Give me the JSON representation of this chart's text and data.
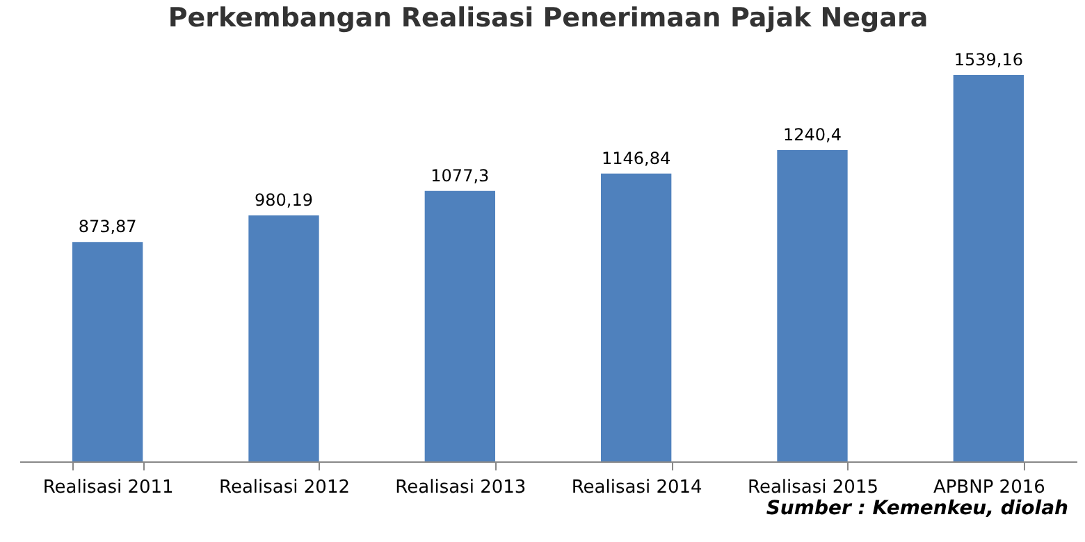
{
  "chart_data": {
    "type": "bar",
    "title": "Perkembangan Realisasi Penerimaan Pajak Negara",
    "categories": [
      "Realisasi 2011",
      "Realisasi 2012",
      "Realisasi 2013",
      "Realisasi 2014",
      "Realisasi 2015",
      "APBNP 2016"
    ],
    "values": [
      873.87,
      980.19,
      1077.3,
      1146.84,
      1240.4,
      1539.16
    ],
    "value_labels": [
      "873,87",
      "980,19",
      "1077,3",
      "1146,84",
      "1240,4",
      "1539,16"
    ],
    "color": "#4f81bd",
    "annotations": [
      "Sumber : Kemenkeu, diolah"
    ]
  }
}
